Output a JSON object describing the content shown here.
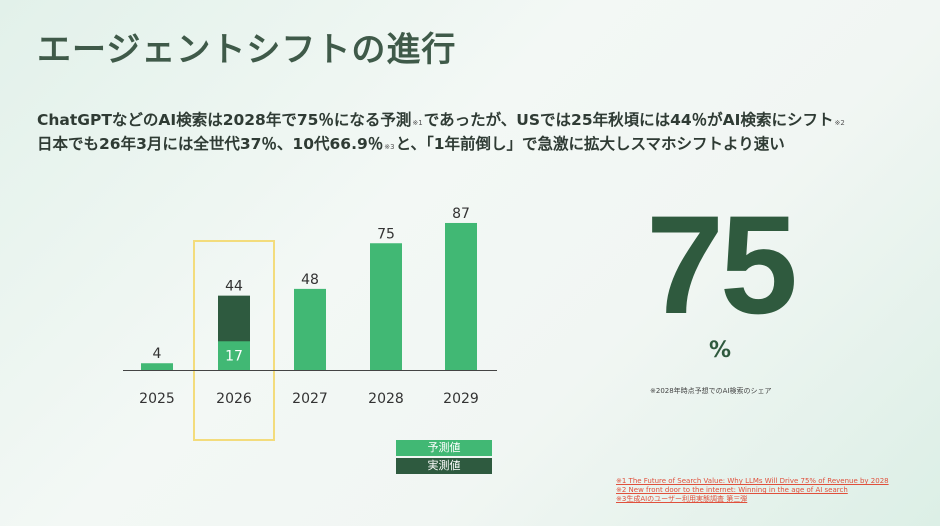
{
  "title": "エージェントシフトの進行",
  "subtitle": {
    "line1_a": "ChatGPTなどのAI検索は2028年で75％になる予測",
    "line1_ref1": "※1",
    "line1_b": "であったが、USでは25年秋頃には44％がAI検索にシフト",
    "line1_ref2": "※2",
    "line2_a": "日本でも26年3月には全世代37％、10代66.9％",
    "line2_ref3": "※3",
    "line2_b": "と、「1年前倒し」で急激に拡大しスマホシフトより速い"
  },
  "chart_data": {
    "type": "bar",
    "categories": [
      "2025",
      "2026",
      "2027",
      "2028",
      "2029"
    ],
    "series": [
      {
        "name": "予測値",
        "values": [
          4,
          17,
          48,
          75,
          87
        ]
      },
      {
        "name": "実測値",
        "values": [
          null,
          44,
          null,
          null,
          null
        ]
      }
    ],
    "value_labels": [
      "4",
      "44",
      "48",
      "75",
      "87"
    ],
    "inner_label": "17",
    "highlight_category": "2026",
    "ylim": [
      0,
      90
    ],
    "colors": {
      "forecast": "#41b874",
      "actual": "#2e5a3f",
      "highlight": "#f3dc7c"
    },
    "legend": [
      "予測値",
      "実測値"
    ],
    "legend_position": "bottom-right"
  },
  "highlight": {
    "value": "75",
    "unit": "%",
    "note": "※2028年時点予想でのAI検索のシェア"
  },
  "footnotes": [
    "※1 The Future of Search Value: Why LLMs Will Drive 75% of Revenue by 2028",
    "※2 New front door to the internet: Winning in the age of AI search",
    "※3生成AIのユーザー利用実態調査 第三弾"
  ]
}
